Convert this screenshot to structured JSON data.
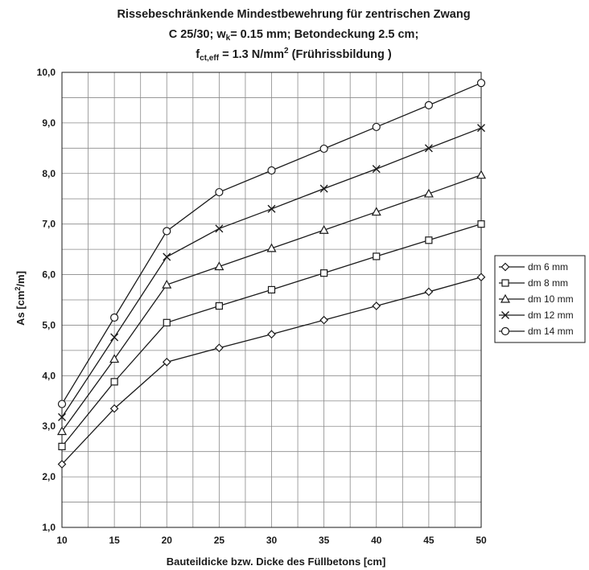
{
  "chart_data": {
    "type": "line",
    "title_line1": "Rissebeschränkende Mindestbewehrung für zentrischen Zwang",
    "title_line2_pre": "C 25/30; w",
    "title_line2_sub": "k",
    "title_line2_post": "= 0.15 mm; Betondeckung 2.5 cm;",
    "title_line3_pre": "f",
    "title_line3_sub": "ct,eff",
    "title_line3_mid": " = 1.3 N/mm",
    "title_line3_sup": "2",
    "title_line3_post": " (Frührissbildung )",
    "xlabel": "Bauteildicke bzw. Dicke des Füllbetons [cm]",
    "ylabel_pre": "As [cm",
    "ylabel_sup": "2",
    "ylabel_post": "/m]",
    "x": [
      10,
      15,
      20,
      25,
      30,
      35,
      40,
      45,
      50
    ],
    "xlim": [
      10,
      50
    ],
    "ylim": [
      1.0,
      10.0
    ],
    "x_ticks": [
      "10",
      "15",
      "20",
      "25",
      "30",
      "35",
      "40",
      "45",
      "50"
    ],
    "y_ticks": [
      "1,0",
      "2,0",
      "3,0",
      "4,0",
      "5,0",
      "6,0",
      "7,0",
      "8,0",
      "9,0",
      "10,0"
    ],
    "grid": true,
    "legend_placement": "right",
    "series": [
      {
        "name": "dm 6 mm",
        "marker": "diamond",
        "values": [
          2.25,
          3.35,
          4.27,
          4.55,
          4.82,
          5.1,
          5.38,
          5.66,
          5.95
        ]
      },
      {
        "name": "dm 8 mm",
        "marker": "square",
        "values": [
          2.6,
          3.88,
          5.05,
          5.38,
          5.7,
          6.03,
          6.36,
          6.68,
          7.0
        ]
      },
      {
        "name": "dm 10 mm",
        "marker": "triangle",
        "values": [
          2.9,
          4.33,
          5.8,
          6.16,
          6.52,
          6.88,
          7.24,
          7.6,
          7.97
        ]
      },
      {
        "name": "dm 12 mm",
        "marker": "x",
        "values": [
          3.18,
          4.76,
          6.35,
          6.91,
          7.3,
          7.7,
          8.09,
          8.5,
          8.9
        ]
      },
      {
        "name": "dm 14 mm",
        "marker": "circle",
        "values": [
          3.44,
          5.15,
          6.86,
          7.63,
          8.06,
          8.49,
          8.92,
          9.35,
          9.79
        ]
      }
    ]
  }
}
